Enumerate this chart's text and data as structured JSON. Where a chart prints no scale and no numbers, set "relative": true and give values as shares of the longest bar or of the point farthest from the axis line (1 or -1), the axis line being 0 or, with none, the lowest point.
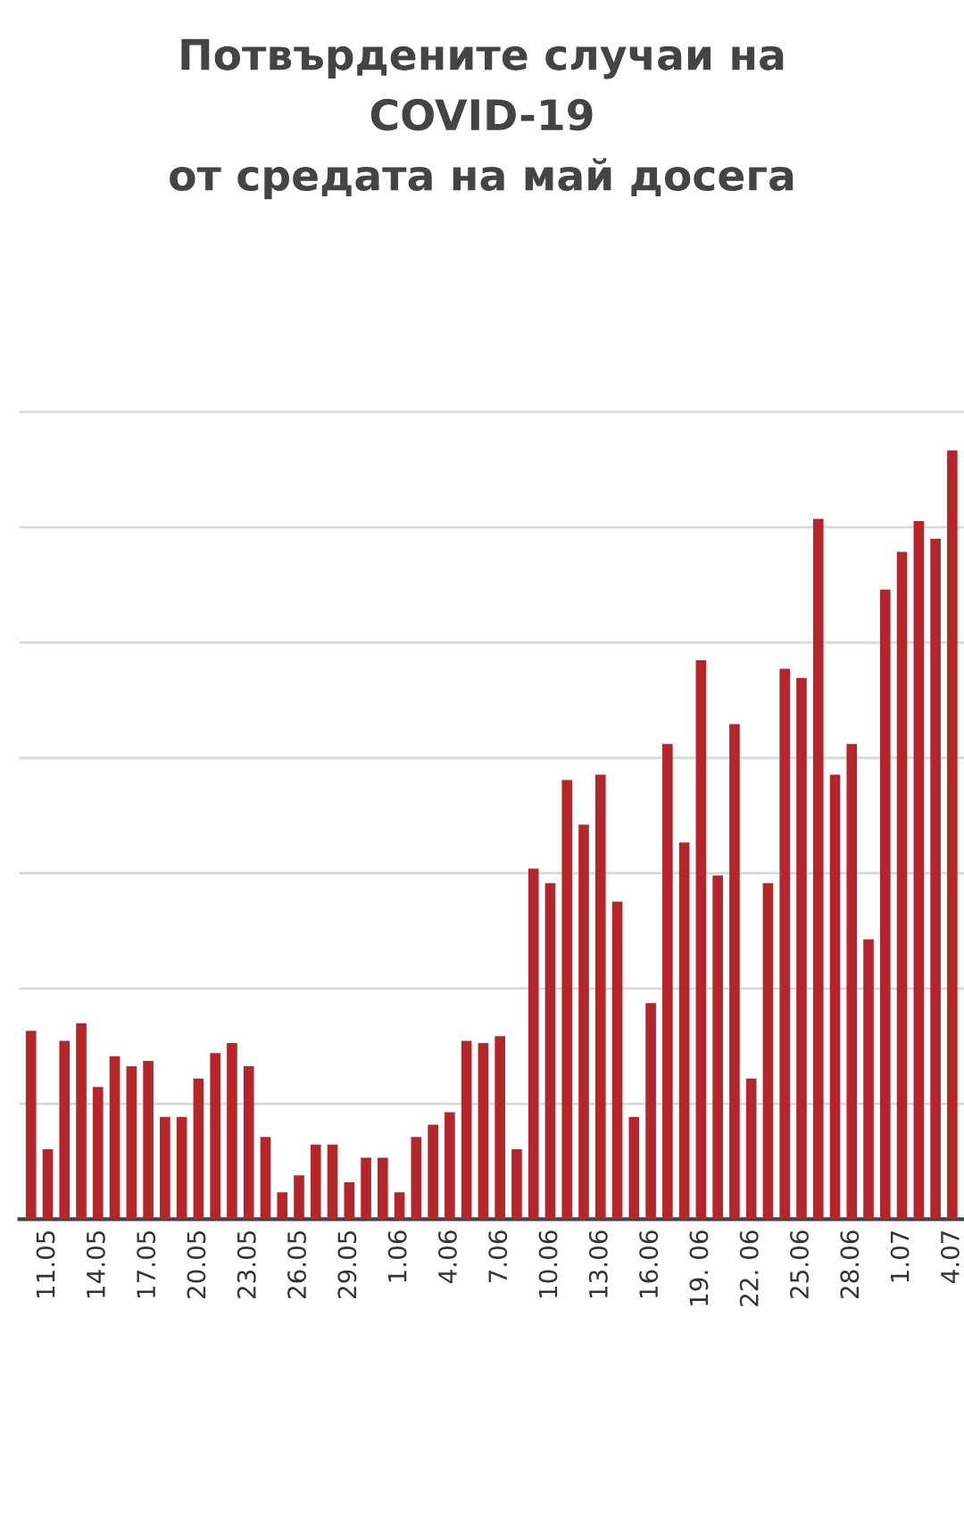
{
  "chart_data": {
    "type": "bar",
    "title": "Потвърдените случаи на\nCOVID-19\nот средата на май досега",
    "categories": [
      null,
      "11.05",
      null,
      null,
      "14.05",
      null,
      null,
      "17.05",
      null,
      null,
      "20.05",
      null,
      null,
      "23.05",
      null,
      null,
      "26.05",
      null,
      null,
      "29.05",
      null,
      null,
      "1.06",
      null,
      null,
      "4.06",
      null,
      null,
      "7.06",
      null,
      null,
      "10.06",
      null,
      null,
      "13.06",
      null,
      null,
      "16.06",
      null,
      null,
      "19. 06",
      null,
      null,
      "22. 06",
      null,
      null,
      "25.06",
      null,
      null,
      "28.06",
      null,
      null,
      "1.07",
      null,
      null,
      "4.07"
    ],
    "values": [
      0.245,
      0.091,
      0.232,
      0.255,
      0.172,
      0.212,
      0.199,
      0.206,
      0.133,
      0.133,
      0.183,
      0.216,
      0.229,
      0.199,
      0.107,
      0.035,
      0.057,
      0.097,
      0.097,
      0.048,
      0.08,
      0.08,
      0.035,
      0.107,
      0.123,
      0.139,
      0.232,
      0.229,
      0.238,
      0.091,
      0.456,
      0.437,
      0.571,
      0.513,
      0.578,
      0.413,
      0.133,
      0.281,
      0.618,
      0.49,
      0.727,
      0.447,
      0.644,
      0.183,
      0.437,
      0.716,
      0.704,
      0.911,
      0.578,
      0.618,
      0.364,
      0.819,
      0.868,
      0.908,
      0.885,
      1.0
    ],
    "color": "#b5262b",
    "relative": true,
    "grid": "y"
  }
}
